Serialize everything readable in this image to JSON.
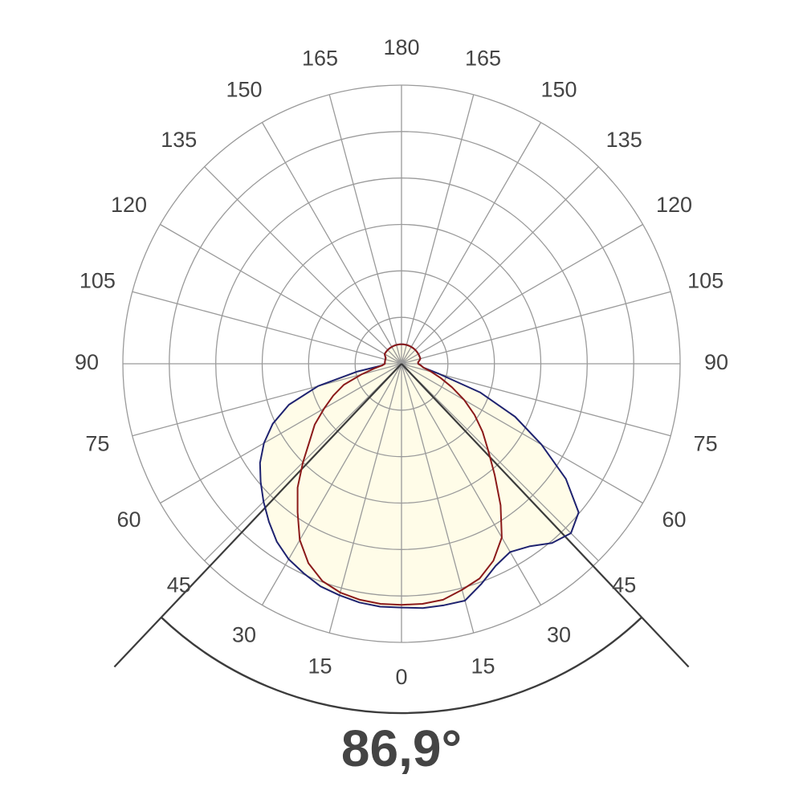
{
  "chart_data": {
    "type": "polar",
    "title": "",
    "beam_angle_label": "86,9°",
    "angle_labels_left": [
      "0",
      "15",
      "30",
      "45",
      "60",
      "75",
      "90",
      "105",
      "120",
      "135",
      "150",
      "165",
      "180"
    ],
    "angle_labels_right": [
      "15",
      "30",
      "45",
      "60",
      "75",
      "90",
      "105",
      "120",
      "135",
      "150",
      "165"
    ],
    "radial_rings": 6,
    "spoke_step_deg": 15,
    "beam_half_angle_deg": 43.45,
    "series": [
      {
        "color": "#1f2370",
        "fill": "#fffce8",
        "angle_deg": [
          -180,
          -175,
          -170,
          -165,
          -160,
          -155,
          -150,
          -145,
          -140,
          -135,
          -130,
          -125,
          -120,
          -115,
          -110,
          -105,
          -100,
          -95,
          -90,
          -85,
          -80,
          -75,
          -70,
          -65,
          -60,
          -55,
          -50,
          -45,
          -40,
          -35,
          -30,
          -25,
          -20,
          -15,
          -10,
          -5,
          0,
          5,
          10,
          15,
          20,
          25,
          30,
          35,
          40,
          45,
          50,
          55,
          60,
          65,
          70,
          75,
          80,
          85,
          90,
          95,
          100,
          105,
          110,
          115,
          120,
          125,
          130,
          135,
          140,
          145,
          150,
          155,
          160,
          165,
          170,
          175,
          180
        ],
        "intensity": [
          0.07,
          0.07,
          0.07,
          0.07,
          0.07,
          0.07,
          0.07,
          0.07,
          0.07,
          0.07,
          0.07,
          0.07,
          0.07,
          0.065,
          0.06,
          0.06,
          0.06,
          0.06,
          0.06,
          0.07,
          0.16,
          0.31,
          0.43,
          0.51,
          0.57,
          0.62,
          0.66,
          0.7,
          0.74,
          0.78,
          0.81,
          0.83,
          0.85,
          0.86,
          0.87,
          0.875,
          0.875,
          0.88,
          0.88,
          0.88,
          0.84,
          0.8,
          0.78,
          0.8,
          0.84,
          0.86,
          0.83,
          0.72,
          0.58,
          0.45,
          0.3,
          0.14,
          0.08,
          0.07,
          0.06,
          0.06,
          0.065,
          0.07,
          0.07,
          0.07,
          0.07,
          0.07,
          0.07,
          0.07,
          0.07,
          0.07,
          0.07,
          0.07,
          0.07,
          0.07,
          0.07,
          0.07,
          0.07
        ]
      },
      {
        "color": "#8b1a1a",
        "fill": "#fffce8",
        "angle_deg": [
          -180,
          -175,
          -170,
          -165,
          -160,
          -155,
          -150,
          -145,
          -140,
          -135,
          -130,
          -125,
          -120,
          -115,
          -110,
          -105,
          -100,
          -95,
          -90,
          -85,
          -80,
          -75,
          -70,
          -65,
          -60,
          -55,
          -50,
          -45,
          -40,
          -35,
          -30,
          -25,
          -20,
          -15,
          -10,
          -5,
          0,
          5,
          10,
          15,
          20,
          25,
          30,
          35,
          40,
          45,
          50,
          55,
          60,
          65,
          70,
          75,
          80,
          85,
          90,
          95,
          100,
          105,
          110,
          115,
          120,
          125,
          130,
          135,
          140,
          145,
          150,
          155,
          160,
          165,
          170,
          175,
          180
        ],
        "intensity": [
          0.07,
          0.07,
          0.07,
          0.07,
          0.07,
          0.07,
          0.07,
          0.07,
          0.07,
          0.07,
          0.07,
          0.07,
          0.07,
          0.065,
          0.06,
          0.06,
          0.06,
          0.06,
          0.06,
          0.07,
          0.1,
          0.15,
          0.22,
          0.27,
          0.32,
          0.38,
          0.43,
          0.5,
          0.58,
          0.65,
          0.73,
          0.79,
          0.83,
          0.85,
          0.86,
          0.865,
          0.865,
          0.865,
          0.86,
          0.84,
          0.82,
          0.78,
          0.72,
          0.62,
          0.52,
          0.44,
          0.38,
          0.32,
          0.26,
          0.2,
          0.15,
          0.11,
          0.08,
          0.07,
          0.06,
          0.06,
          0.065,
          0.07,
          0.07,
          0.07,
          0.07,
          0.07,
          0.07,
          0.07,
          0.07,
          0.07,
          0.07,
          0.07,
          0.07,
          0.07,
          0.07,
          0.07,
          0.07
        ]
      }
    ]
  }
}
